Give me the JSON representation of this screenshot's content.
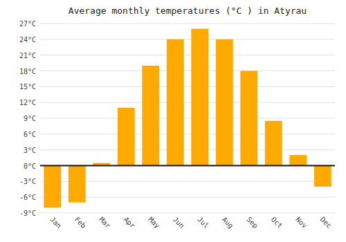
{
  "chart_data": {
    "type": "bar",
    "title": "Average monthly temperatures (°C ) in Atyrau",
    "categories": [
      "Jan",
      "Feb",
      "Mar",
      "Apr",
      "May",
      "Jun",
      "Jul",
      "Aug",
      "Sep",
      "Oct",
      "Nov",
      "Dec"
    ],
    "values": [
      -8,
      -7,
      0.5,
      11,
      19,
      24,
      26,
      24,
      18,
      8.5,
      2,
      -4
    ],
    "color": "#FFAA00",
    "ylim": [
      -9,
      27
    ],
    "yticks": [
      {
        "value": -9,
        "label": "-9°C"
      },
      {
        "value": -6,
        "label": "-6°C"
      },
      {
        "value": -3,
        "label": "-3°C"
      },
      {
        "value": 0,
        "label": "0°C"
      },
      {
        "value": 3,
        "label": "3°C"
      },
      {
        "value": 6,
        "label": "6°C"
      },
      {
        "value": 9,
        "label": "9°C"
      },
      {
        "value": 12,
        "label": "12°C"
      },
      {
        "value": 15,
        "label": "15°C"
      },
      {
        "value": 18,
        "label": "18°C"
      },
      {
        "value": 21,
        "label": "21°C"
      },
      {
        "value": 24,
        "label": "24°C"
      },
      {
        "value": 27,
        "label": "27°C"
      }
    ],
    "grid": true
  }
}
